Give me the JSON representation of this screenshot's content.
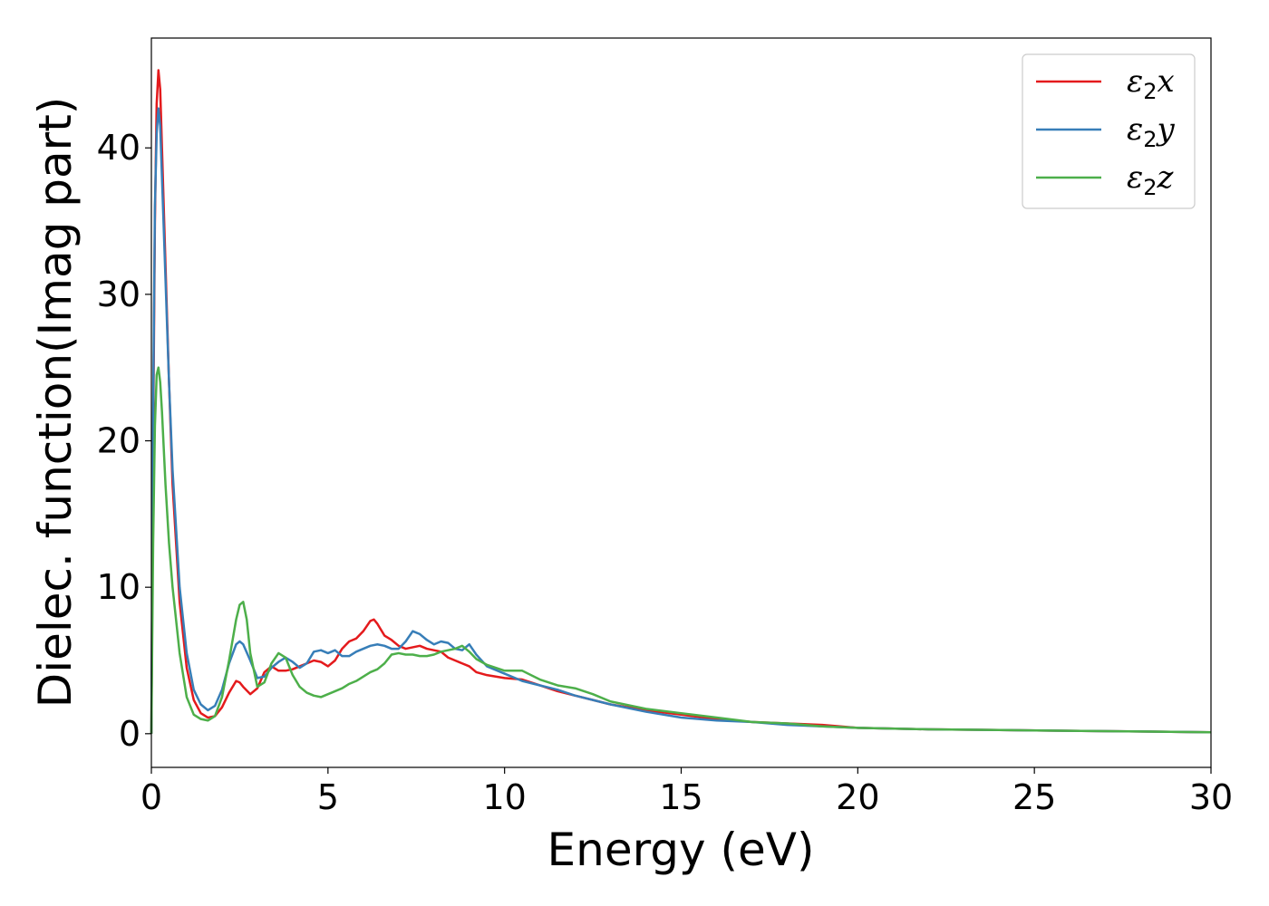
{
  "chart_data": {
    "type": "line",
    "xlabel": "Energy (eV)",
    "ylabel": "Dielec. function(Imag part)",
    "xlim": [
      0,
      30
    ],
    "ylim": [
      -2.3,
      47.5
    ],
    "xticks": [
      0,
      5,
      10,
      15,
      20,
      25,
      30
    ],
    "yticks": [
      0,
      10,
      20,
      30,
      40
    ],
    "grid": false,
    "legend_position": "top-right",
    "series": [
      {
        "name": "ε2x",
        "legend_base": "ε",
        "legend_sub": "2",
        "legend_suffix": "x",
        "color": "#e41a1c",
        "x": [
          0,
          0.05,
          0.1,
          0.15,
          0.2,
          0.25,
          0.3,
          0.4,
          0.5,
          0.6,
          0.8,
          1.0,
          1.2,
          1.4,
          1.6,
          1.8,
          2.0,
          2.2,
          2.4,
          2.5,
          2.6,
          2.8,
          3.0,
          3.2,
          3.4,
          3.6,
          3.8,
          4.0,
          4.2,
          4.4,
          4.6,
          4.8,
          5.0,
          5.2,
          5.4,
          5.6,
          5.8,
          6.0,
          6.2,
          6.3,
          6.4,
          6.6,
          6.8,
          7.0,
          7.2,
          7.4,
          7.6,
          7.8,
          8.0,
          8.2,
          8.4,
          8.6,
          8.8,
          9.0,
          9.2,
          9.5,
          10.0,
          10.5,
          11.0,
          11.5,
          12.0,
          12.5,
          13.0,
          14.0,
          15.0,
          16.0,
          17.0,
          18.0,
          19.0,
          20.0,
          22.0,
          24.0,
          26.0,
          28.0,
          30.0
        ],
        "y": [
          0,
          20,
          35,
          43,
          45.3,
          44,
          40,
          32,
          24,
          17,
          9,
          4.5,
          2.3,
          1.4,
          1.1,
          1.2,
          1.8,
          2.8,
          3.6,
          3.5,
          3.2,
          2.7,
          3.1,
          4.2,
          4.6,
          4.3,
          4.3,
          4.4,
          4.6,
          4.8,
          5.0,
          4.9,
          4.6,
          5.0,
          5.8,
          6.3,
          6.5,
          7.0,
          7.7,
          7.8,
          7.5,
          6.7,
          6.4,
          6.0,
          5.8,
          5.9,
          6.0,
          5.8,
          5.7,
          5.6,
          5.2,
          5.0,
          4.8,
          4.6,
          4.2,
          4.0,
          3.8,
          3.7,
          3.3,
          2.9,
          2.6,
          2.3,
          2.0,
          1.6,
          1.3,
          1.0,
          0.8,
          0.7,
          0.6,
          0.4,
          0.3,
          0.25,
          0.2,
          0.15,
          0.1
        ]
      },
      {
        "name": "ε2y",
        "legend_base": "ε",
        "legend_sub": "2",
        "legend_suffix": "y",
        "color": "#377eb8",
        "x": [
          0,
          0.05,
          0.1,
          0.15,
          0.2,
          0.25,
          0.3,
          0.4,
          0.5,
          0.6,
          0.8,
          1.0,
          1.2,
          1.4,
          1.6,
          1.8,
          2.0,
          2.2,
          2.4,
          2.5,
          2.6,
          2.8,
          3.0,
          3.2,
          3.4,
          3.6,
          3.8,
          4.0,
          4.2,
          4.4,
          4.6,
          4.8,
          5.0,
          5.2,
          5.4,
          5.6,
          5.8,
          6.0,
          6.2,
          6.4,
          6.6,
          6.8,
          7.0,
          7.2,
          7.4,
          7.6,
          7.8,
          8.0,
          8.2,
          8.4,
          8.6,
          8.8,
          9.0,
          9.2,
          9.5,
          10.0,
          10.5,
          11.0,
          11.5,
          12.0,
          12.5,
          13.0,
          14.0,
          15.0,
          16.0,
          17.0,
          18.0,
          19.0,
          20.0,
          22.0,
          24.0,
          26.0,
          28.0,
          30.0
        ],
        "y": [
          0,
          22,
          36,
          41,
          42.7,
          41.5,
          38,
          31,
          24,
          18,
          10,
          5.5,
          3.0,
          2.0,
          1.6,
          1.9,
          3.0,
          4.8,
          6.1,
          6.3,
          6.1,
          5.0,
          3.8,
          3.9,
          4.5,
          4.9,
          5.2,
          4.9,
          4.5,
          4.8,
          5.6,
          5.7,
          5.5,
          5.7,
          5.3,
          5.3,
          5.6,
          5.8,
          6.0,
          6.1,
          6.0,
          5.8,
          5.8,
          6.3,
          7.0,
          6.8,
          6.4,
          6.1,
          6.3,
          6.2,
          5.8,
          5.7,
          6.1,
          5.4,
          4.6,
          4.1,
          3.6,
          3.3,
          3.0,
          2.6,
          2.3,
          2.0,
          1.5,
          1.1,
          0.9,
          0.8,
          0.6,
          0.5,
          0.4,
          0.3,
          0.25,
          0.2,
          0.15,
          0.1
        ]
      },
      {
        "name": "ε2z",
        "legend_base": "ε",
        "legend_sub": "2",
        "legend_suffix": "z",
        "color": "#4daf4a",
        "x": [
          0,
          0.05,
          0.1,
          0.15,
          0.2,
          0.25,
          0.3,
          0.4,
          0.5,
          0.6,
          0.8,
          1.0,
          1.2,
          1.4,
          1.6,
          1.8,
          2.0,
          2.2,
          2.4,
          2.5,
          2.6,
          2.7,
          2.8,
          3.0,
          3.2,
          3.4,
          3.6,
          3.8,
          4.0,
          4.2,
          4.4,
          4.6,
          4.8,
          5.0,
          5.2,
          5.4,
          5.6,
          5.8,
          6.0,
          6.2,
          6.4,
          6.6,
          6.8,
          7.0,
          7.2,
          7.4,
          7.6,
          7.8,
          8.0,
          8.2,
          8.4,
          8.6,
          8.8,
          9.0,
          9.2,
          9.5,
          10.0,
          10.5,
          11.0,
          11.5,
          12.0,
          12.5,
          13.0,
          14.0,
          15.0,
          16.0,
          17.0,
          18.0,
          19.0,
          20.0,
          22.0,
          24.0,
          26.0,
          28.0,
          30.0
        ],
        "y": [
          0,
          13,
          21,
          24.5,
          25.0,
          24,
          22,
          17,
          13,
          10,
          5.5,
          2.5,
          1.3,
          1.0,
          0.9,
          1.2,
          2.5,
          5.0,
          7.8,
          8.8,
          9.0,
          7.8,
          5.5,
          3.2,
          3.5,
          4.8,
          5.5,
          5.2,
          4.0,
          3.2,
          2.8,
          2.6,
          2.5,
          2.7,
          2.9,
          3.1,
          3.4,
          3.6,
          3.9,
          4.2,
          4.4,
          4.8,
          5.4,
          5.5,
          5.4,
          5.4,
          5.3,
          5.3,
          5.4,
          5.6,
          5.7,
          5.8,
          6.0,
          5.6,
          5.1,
          4.7,
          4.3,
          4.3,
          3.7,
          3.3,
          3.1,
          2.7,
          2.2,
          1.7,
          1.4,
          1.1,
          0.8,
          0.7,
          0.5,
          0.4,
          0.3,
          0.25,
          0.2,
          0.15,
          0.1
        ]
      }
    ]
  }
}
